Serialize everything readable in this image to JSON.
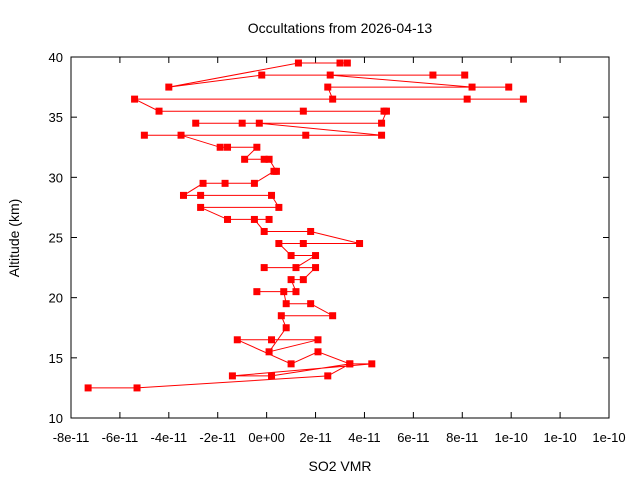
{
  "chart_data": {
    "type": "line",
    "title": "Occultations from 2026-04-13",
    "xlabel": "SO2 VMR",
    "ylabel": "Altitude (km)",
    "xlim": [
      -8e-11,
      1.4e-10
    ],
    "ylim": [
      10,
      40
    ],
    "grid": false,
    "legend": "none",
    "x_ticks": [
      -8e-11,
      -6e-11,
      -4e-11,
      -2e-11,
      0,
      2e-11,
      4e-11,
      6e-11,
      8e-11,
      1e-10,
      1.2e-10,
      1.4e-10
    ],
    "x_tick_labels": [
      "-8e-11",
      "-6e-11",
      "-4e-11",
      "-2e-11",
      "0e+00",
      "2e-11",
      "4e-11",
      "6e-11",
      "8e-11",
      "1e-10",
      "1e-10",
      "1e-10"
    ],
    "y_ticks": [
      10,
      15,
      20,
      25,
      30,
      35,
      40
    ],
    "y_tick_labels": [
      "10",
      "15",
      "20",
      "25",
      "30",
      "35",
      "40"
    ],
    "series": [
      {
        "color": "#ff0000",
        "marker": "square",
        "points": [
          [
            -7.3e-11,
            12.5
          ],
          [
            -5.3e-11,
            12.5
          ],
          [
            2.5e-11,
            13.5
          ],
          [
            3.4e-11,
            14.5
          ],
          [
            4.3e-11,
            14.5
          ],
          [
            -1.4e-11,
            13.5
          ],
          [
            2e-12,
            13.5
          ],
          [
            3.4e-11,
            14.5
          ],
          [
            2.1e-11,
            15.5
          ],
          [
            1e-11,
            14.5
          ],
          [
            -1.2e-11,
            16.5
          ],
          [
            2e-12,
            16.5
          ],
          [
            2.1e-11,
            16.5
          ],
          [
            1e-12,
            15.5
          ],
          [
            8e-12,
            17.5
          ],
          [
            6e-12,
            18.5
          ],
          [
            2.7e-11,
            18.5
          ],
          [
            1.8e-11,
            19.5
          ],
          [
            8e-12,
            19.5
          ],
          [
            7e-12,
            20.5
          ],
          [
            -4e-12,
            20.5
          ],
          [
            1.2e-11,
            20.5
          ],
          [
            1e-11,
            21.5
          ],
          [
            1.5e-11,
            21.5
          ],
          [
            2e-11,
            22.5
          ],
          [
            -1e-12,
            22.5
          ],
          [
            1.2e-11,
            22.5
          ],
          [
            2e-11,
            23.5
          ],
          [
            1e-11,
            23.5
          ],
          [
            5e-12,
            24.5
          ],
          [
            1.5e-11,
            24.5
          ],
          [
            3.8e-11,
            24.5
          ],
          [
            1.8e-11,
            25.5
          ],
          [
            -1e-12,
            25.5
          ],
          [
            -5e-12,
            26.5
          ],
          [
            1e-12,
            26.5
          ],
          [
            -1.6e-11,
            26.5
          ],
          [
            -2.7e-11,
            27.5
          ],
          [
            5e-12,
            27.5
          ],
          [
            2e-12,
            28.5
          ],
          [
            -2.7e-11,
            28.5
          ],
          [
            -3.4e-11,
            28.5
          ],
          [
            -2.6e-11,
            29.5
          ],
          [
            -1.7e-11,
            29.5
          ],
          [
            -5e-12,
            29.5
          ],
          [
            3e-12,
            30.5
          ],
          [
            4e-12,
            30.5
          ],
          [
            1e-12,
            31.5
          ],
          [
            -1e-12,
            31.5
          ],
          [
            -9e-12,
            31.5
          ],
          [
            -4e-12,
            32.5
          ],
          [
            -1.6e-11,
            32.5
          ],
          [
            -1.9e-11,
            32.5
          ],
          [
            -3.5e-11,
            33.5
          ],
          [
            -5e-11,
            33.5
          ],
          [
            1.6e-11,
            33.5
          ],
          [
            4.7e-11,
            33.5
          ],
          [
            -3e-12,
            34.5
          ],
          [
            -1e-11,
            34.5
          ],
          [
            -2.9e-11,
            34.5
          ],
          [
            4.7e-11,
            34.5
          ],
          [
            4.9e-11,
            35.5
          ],
          [
            4.8e-11,
            35.5
          ],
          [
            1.5e-11,
            35.5
          ],
          [
            -4.4e-11,
            35.5
          ],
          [
            -5.4e-11,
            36.5
          ],
          [
            1.05e-10,
            36.5
          ],
          [
            8.2e-11,
            36.5
          ],
          [
            2.7e-11,
            36.5
          ],
          [
            2.5e-11,
            37.5
          ],
          [
            9.9e-11,
            37.5
          ],
          [
            8.4e-11,
            37.5
          ],
          [
            2.6e-11,
            38.5
          ],
          [
            6.8e-11,
            38.5
          ],
          [
            8.1e-11,
            38.5
          ],
          [
            -2e-12,
            38.5
          ],
          [
            -4e-11,
            37.5
          ],
          [
            1.3e-11,
            39.5
          ],
          [
            3e-11,
            39.5
          ],
          [
            3.3e-11,
            39.5
          ]
        ]
      }
    ]
  }
}
